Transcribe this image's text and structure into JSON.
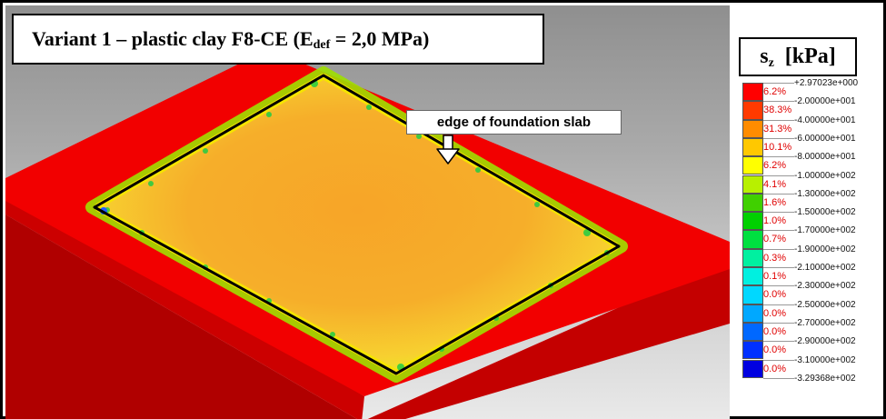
{
  "title": {
    "prefix": "Variant 1 – plastic clay F8-CE (E",
    "subscript": "def",
    "suffix": " = 2,0 MPa)"
  },
  "callout": {
    "label": "edge of foundation slab"
  },
  "legend": {
    "title_main": "s",
    "title_sub": "z",
    "title_unit": "  [kPa]",
    "bands": [
      {
        "pct": "6.2%",
        "color": "#ff0000"
      },
      {
        "pct": "38.3%",
        "color": "#ff3a00"
      },
      {
        "pct": "31.3%",
        "color": "#ff8c00"
      },
      {
        "pct": "10.1%",
        "color": "#ffc800"
      },
      {
        "pct": "6.2%",
        "color": "#ffff00"
      },
      {
        "pct": "4.1%",
        "color": "#b8f000"
      },
      {
        "pct": "1.6%",
        "color": "#40d000"
      },
      {
        "pct": "1.0%",
        "color": "#00d000"
      },
      {
        "pct": "0.7%",
        "color": "#00e040"
      },
      {
        "pct": "0.3%",
        "color": "#00f0a0"
      },
      {
        "pct": "0.1%",
        "color": "#00f0e0"
      },
      {
        "pct": "0.0%",
        "color": "#00d8ff"
      },
      {
        "pct": "0.0%",
        "color": "#00a8ff"
      },
      {
        "pct": "0.0%",
        "color": "#0068ff"
      },
      {
        "pct": "0.0%",
        "color": "#0030ff"
      },
      {
        "pct": "0.0%",
        "color": "#0000e0"
      }
    ],
    "boundaries": [
      "+2.97023e+000",
      "-2.00000e+001",
      "-4.00000e+001",
      "-6.00000e+001",
      "-8.00000e+001",
      "-1.00000e+002",
      "-1.30000e+002",
      "-1.50000e+002",
      "-1.70000e+002",
      "-1.90000e+002",
      "-2.10000e+002",
      "-2.30000e+002",
      "-2.50000e+002",
      "-2.70000e+002",
      "-2.90000e+002",
      "-3.10000e+002",
      "-3.29368e+002"
    ]
  },
  "colors": {
    "soil_top": "#f20000",
    "soil_side": "#c10000",
    "slab_fill": "#f5a623",
    "slab_edge_glow": "#c8e000",
    "slab_outline": "#000000"
  }
}
